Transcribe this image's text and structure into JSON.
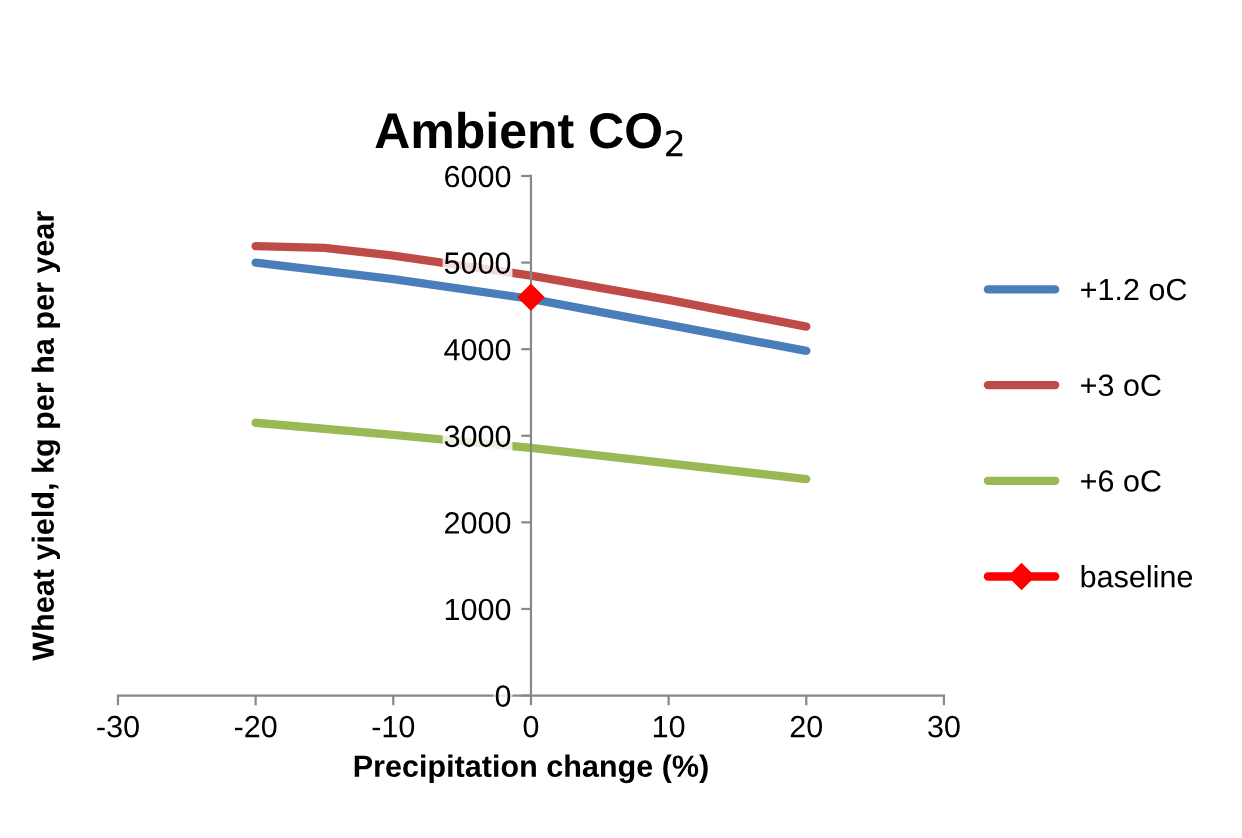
{
  "chart_data": {
    "type": "line",
    "title": "Ambient CO$_{2}$",
    "xlabel": "Precipitation change (%)",
    "ylabel": "Wheat yield, kg per ha per year",
    "xlim": [
      -30,
      30
    ],
    "xticks": [
      -30,
      -20,
      -10,
      0,
      10,
      20,
      30
    ],
    "ylim": [
      0,
      6000
    ],
    "yticks": [
      0,
      1000,
      2000,
      3000,
      4000,
      5000,
      6000
    ],
    "grid": false,
    "legend": "right",
    "marker": "none",
    "line_style": "solid",
    "series": [
      {
        "name": "+1.2 oC",
        "color": "#4a7ebb",
        "x": [
          -20,
          -10,
          0,
          10,
          20
        ],
        "values": [
          5000,
          4810,
          4580,
          4280,
          3980
        ]
      },
      {
        "name": "+3 oC",
        "color": "#be4b48",
        "x": [
          -20,
          -15,
          -10,
          0,
          10,
          20
        ],
        "values": [
          5190,
          5170,
          5080,
          4850,
          4570,
          4260
        ]
      },
      {
        "name": "+6 oC",
        "color": "#98b954",
        "x": [
          -20,
          -10,
          0,
          10,
          20
        ],
        "values": [
          3150,
          3010,
          2860,
          2680,
          2500
        ]
      },
      {
        "name": "baseline",
        "color": "#ff0000",
        "x": [
          0
        ],
        "values": [
          4600
        ],
        "marker": "diamond"
      }
    ]
  }
}
